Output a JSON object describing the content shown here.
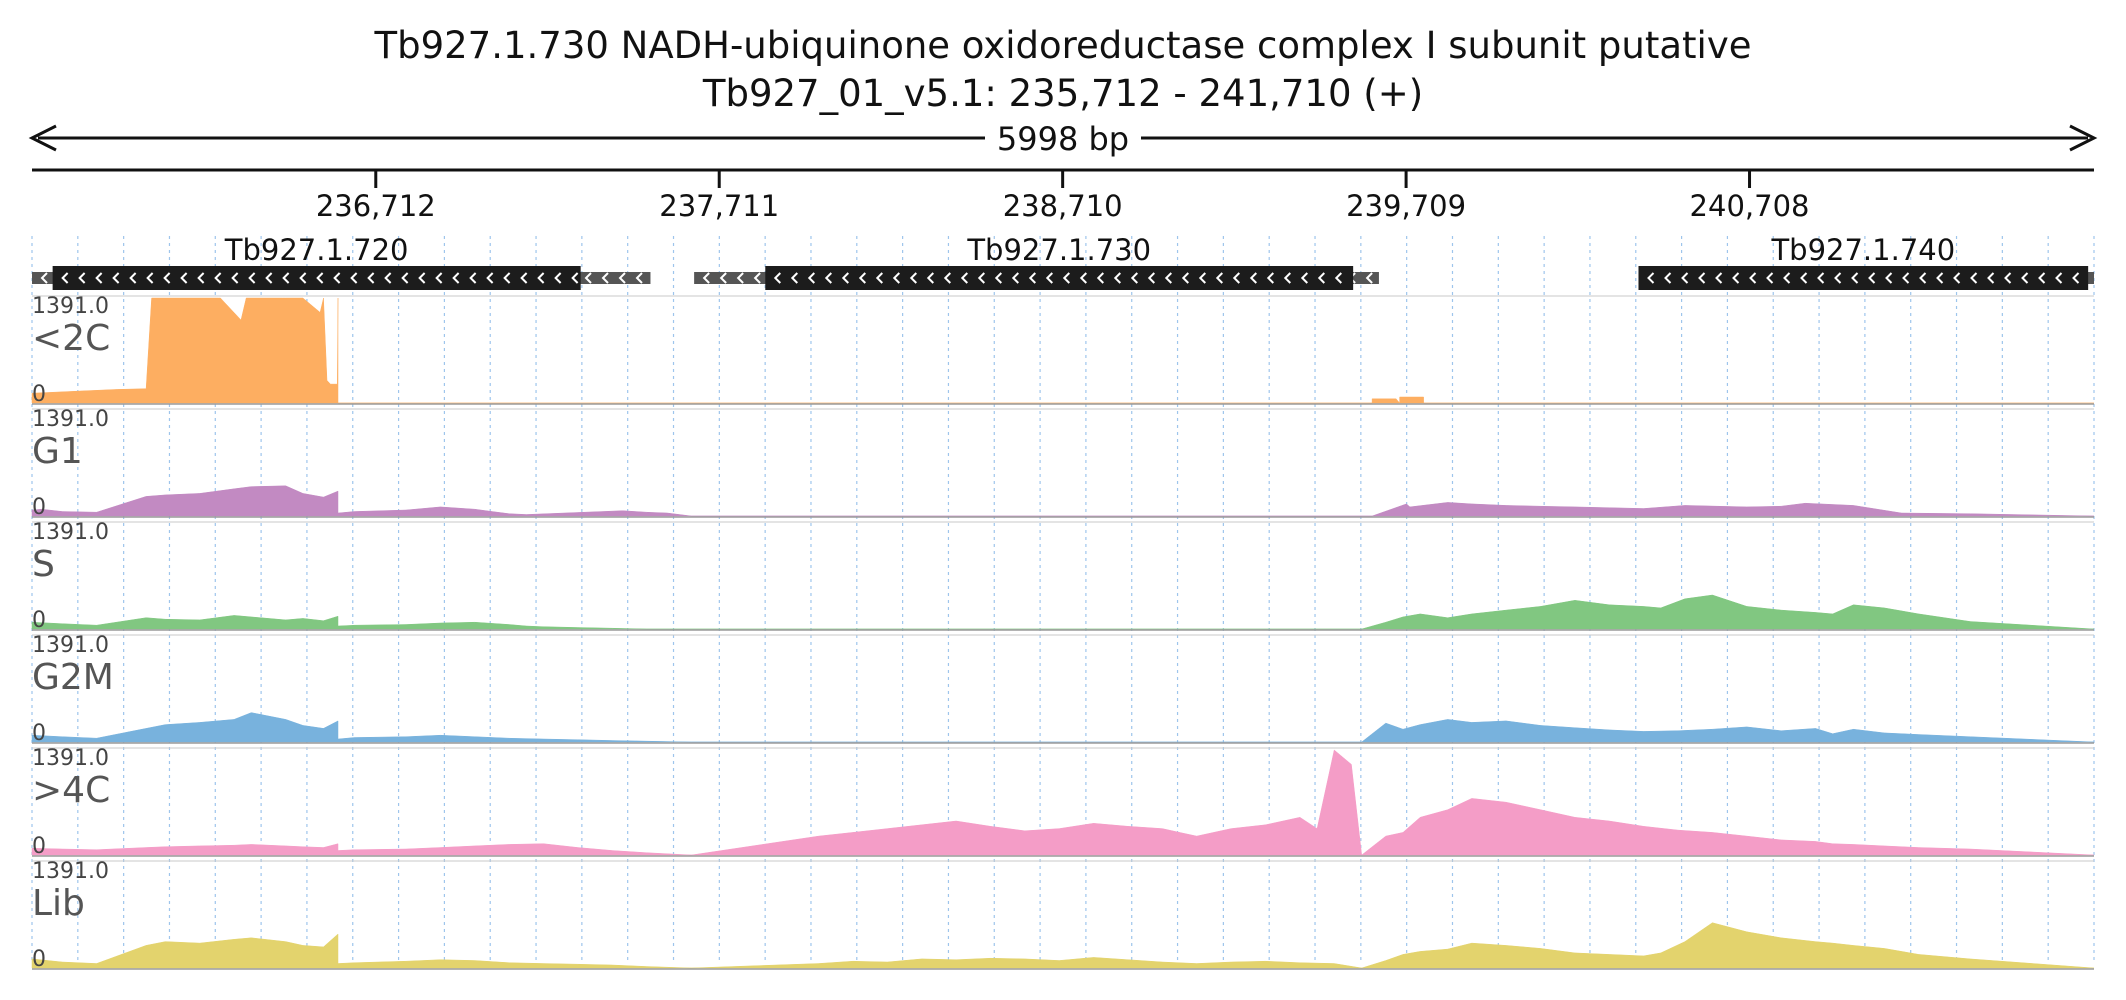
{
  "header": {
    "title": "Tb927.1.730  NADH-ubiquinone oxidoreductase complex I subunit  putative",
    "location": "Tb927_01_v5.1: 235,712 - 241,710 (+)"
  },
  "chart_data": {
    "type": "area",
    "region": {
      "start": 235712,
      "end": 241710,
      "span_label": "5998 bp"
    },
    "ticks": [
      {
        "pos": 236712,
        "label": "236,712"
      },
      {
        "pos": 237711,
        "label": "237,711"
      },
      {
        "pos": 238710,
        "label": "238,710"
      },
      {
        "pos": 239709,
        "label": "239,709"
      },
      {
        "pos": 240708,
        "label": "240,708"
      }
    ],
    "genes": [
      {
        "name": "Tb927.1.720",
        "strand": "-",
        "utr": [
          235712,
          237511
        ],
        "cds": [
          235772,
          237308
        ]
      },
      {
        "name": "Tb927.1.730",
        "strand": "-",
        "utr": [
          237638,
          239630
        ],
        "cds": [
          237845,
          239555
        ]
      },
      {
        "name": "Tb927.1.740",
        "strand": "-",
        "utr": [
          240385,
          241710
        ],
        "cds": [
          240385,
          241693
        ]
      }
    ],
    "ymax_label": "1391.0",
    "ymin_label": "0",
    "grid": "vertical dashed",
    "tracks": [
      {
        "name": "<2C",
        "color": "#fdae61",
        "x": [
          235712,
          235860,
          235960,
          236044,
          236060,
          236160,
          236255,
          236260,
          236320,
          236335,
          236380,
          236440,
          236450,
          236500,
          236550,
          236560,
          236570,
          236580,
          236600,
          236602,
          236602,
          239610,
          239610,
          239680,
          239690,
          239690,
          239700,
          239760,
          239760,
          241710
        ],
        "y": [
          130,
          160,
          180,
          190,
          1391,
          1391,
          1391,
          1391,
          1100,
          1391,
          1391,
          1391,
          1391,
          1391,
          1200,
          1391,
          300,
          250,
          250,
          1391,
          0,
          0,
          55,
          55,
          0,
          80,
          80,
          80,
          0,
          0
        ]
      },
      {
        "name": "G1",
        "color": "#c28ac2",
        "x": [
          235712,
          235740,
          235800,
          235900,
          236044,
          236100,
          236200,
          236300,
          236350,
          236450,
          236500,
          236560,
          236602,
          236602,
          236650,
          236800,
          236900,
          237000,
          237050,
          237100,
          237150,
          237430,
          237500,
          237560,
          237630,
          239600,
          239610,
          239710,
          239720,
          239830,
          239900,
          240000,
          240100,
          240200,
          240300,
          240400,
          240520,
          240700,
          240800,
          240870,
          241010,
          241150,
          241350,
          241710
        ],
        "y": [
          80,
          90,
          60,
          50,
          260,
          280,
          300,
          360,
          390,
          400,
          300,
          250,
          330,
          40,
          60,
          80,
          120,
          90,
          60,
          30,
          20,
          70,
          50,
          40,
          0,
          0,
          0,
          160,
          120,
          180,
          160,
          140,
          130,
          120,
          110,
          100,
          140,
          120,
          130,
          170,
          140,
          40,
          30,
          0
        ]
      },
      {
        "name": "S",
        "color": "#81c781",
        "x": [
          235712,
          235800,
          235900,
          236044,
          236100,
          236200,
          236300,
          236350,
          236450,
          236500,
          236560,
          236602,
          236602,
          236650,
          236800,
          236900,
          237000,
          237100,
          237150,
          237200,
          237300,
          237400,
          237500,
          237630,
          239580,
          239650,
          239700,
          239750,
          239830,
          239900,
          240000,
          240100,
          240200,
          240300,
          240400,
          240450,
          240520,
          240600,
          240700,
          240800,
          240900,
          240950,
          241010,
          241100,
          241200,
          241350,
          241710
        ],
        "y": [
          90,
          70,
          50,
          150,
          130,
          120,
          180,
          160,
          120,
          140,
          110,
          170,
          40,
          50,
          60,
          80,
          90,
          60,
          40,
          30,
          20,
          10,
          0,
          0,
          0,
          90,
          160,
          200,
          150,
          200,
          250,
          300,
          380,
          320,
          300,
          280,
          400,
          450,
          300,
          250,
          220,
          200,
          320,
          280,
          200,
          100,
          0
        ]
      },
      {
        "name": "G2M",
        "color": "#78b2dd",
        "x": [
          235712,
          235800,
          235900,
          236044,
          236100,
          236200,
          236300,
          236350,
          236450,
          236500,
          236560,
          236602,
          236602,
          236650,
          236800,
          236900,
          237000,
          237100,
          237200,
          237300,
          237400,
          237630,
          239580,
          239650,
          239700,
          239750,
          239830,
          239900,
          240000,
          240100,
          240200,
          240300,
          240400,
          240500,
          240600,
          240700,
          240800,
          240900,
          240950,
          241010,
          241100,
          241200,
          241350,
          241710
        ],
        "y": [
          90,
          70,
          50,
          180,
          230,
          260,
          300,
          390,
          300,
          220,
          180,
          280,
          40,
          60,
          70,
          90,
          70,
          50,
          40,
          30,
          20,
          0,
          0,
          250,
          170,
          230,
          300,
          260,
          280,
          220,
          190,
          160,
          140,
          150,
          170,
          200,
          150,
          180,
          110,
          170,
          120,
          100,
          70,
          0
        ]
      },
      {
        "name": ">4C",
        "color": "#f49dc7",
        "x": [
          235712,
          235800,
          235900,
          236044,
          236100,
          236200,
          236300,
          236350,
          236450,
          236500,
          236560,
          236602,
          236602,
          236650,
          236800,
          236900,
          237000,
          237100,
          237200,
          237300,
          237400,
          237500,
          237630,
          238000,
          238100,
          238200,
          238300,
          238400,
          238500,
          238600,
          238700,
          238800,
          238900,
          239000,
          239050,
          239100,
          239200,
          239300,
          239400,
          239450,
          239500,
          239550,
          239580,
          239650,
          239700,
          239750,
          239830,
          239900,
          240000,
          240100,
          240200,
          240300,
          240400,
          240500,
          240600,
          240700,
          240800,
          240900,
          240950,
          241010,
          241100,
          241200,
          241350,
          241710
        ],
        "y": [
          90,
          80,
          70,
          100,
          110,
          120,
          130,
          140,
          120,
          110,
          100,
          150,
          60,
          70,
          80,
          100,
          120,
          140,
          150,
          100,
          60,
          30,
          0,
          250,
          300,
          350,
          400,
          450,
          380,
          320,
          350,
          420,
          380,
          350,
          300,
          250,
          350,
          400,
          500,
          350,
          1391,
          1200,
          0,
          250,
          300,
          500,
          600,
          750,
          700,
          600,
          500,
          450,
          380,
          330,
          300,
          250,
          200,
          180,
          150,
          140,
          120,
          100,
          80,
          0
        ]
      },
      {
        "name": "Lib",
        "color": "#e3d36d",
        "x": [
          235712,
          235800,
          235900,
          236044,
          236100,
          236200,
          236300,
          236350,
          236450,
          236500,
          236560,
          236602,
          236602,
          236650,
          236800,
          236900,
          237000,
          237100,
          237200,
          237300,
          237400,
          237500,
          237630,
          238000,
          238100,
          238200,
          238300,
          238400,
          238500,
          238600,
          238700,
          238800,
          238900,
          239000,
          239100,
          239200,
          239300,
          239400,
          239500,
          239580,
          239650,
          239700,
          239750,
          239830,
          239900,
          240000,
          240100,
          240200,
          240300,
          240400,
          240450,
          240520,
          240600,
          240700,
          240800,
          240900,
          240950,
          241010,
          241100,
          241200,
          241350,
          241710
        ],
        "y": [
          120,
          80,
          60,
          300,
          350,
          330,
          380,
          400,
          350,
          300,
          280,
          450,
          60,
          70,
          90,
          110,
          100,
          70,
          60,
          50,
          40,
          20,
          0,
          60,
          90,
          80,
          120,
          110,
          130,
          120,
          100,
          140,
          110,
          80,
          60,
          80,
          90,
          70,
          60,
          0,
          100,
          180,
          220,
          250,
          330,
          300,
          260,
          200,
          180,
          160,
          200,
          350,
          600,
          480,
          400,
          350,
          330,
          300,
          260,
          180,
          120,
          0
        ]
      }
    ]
  }
}
